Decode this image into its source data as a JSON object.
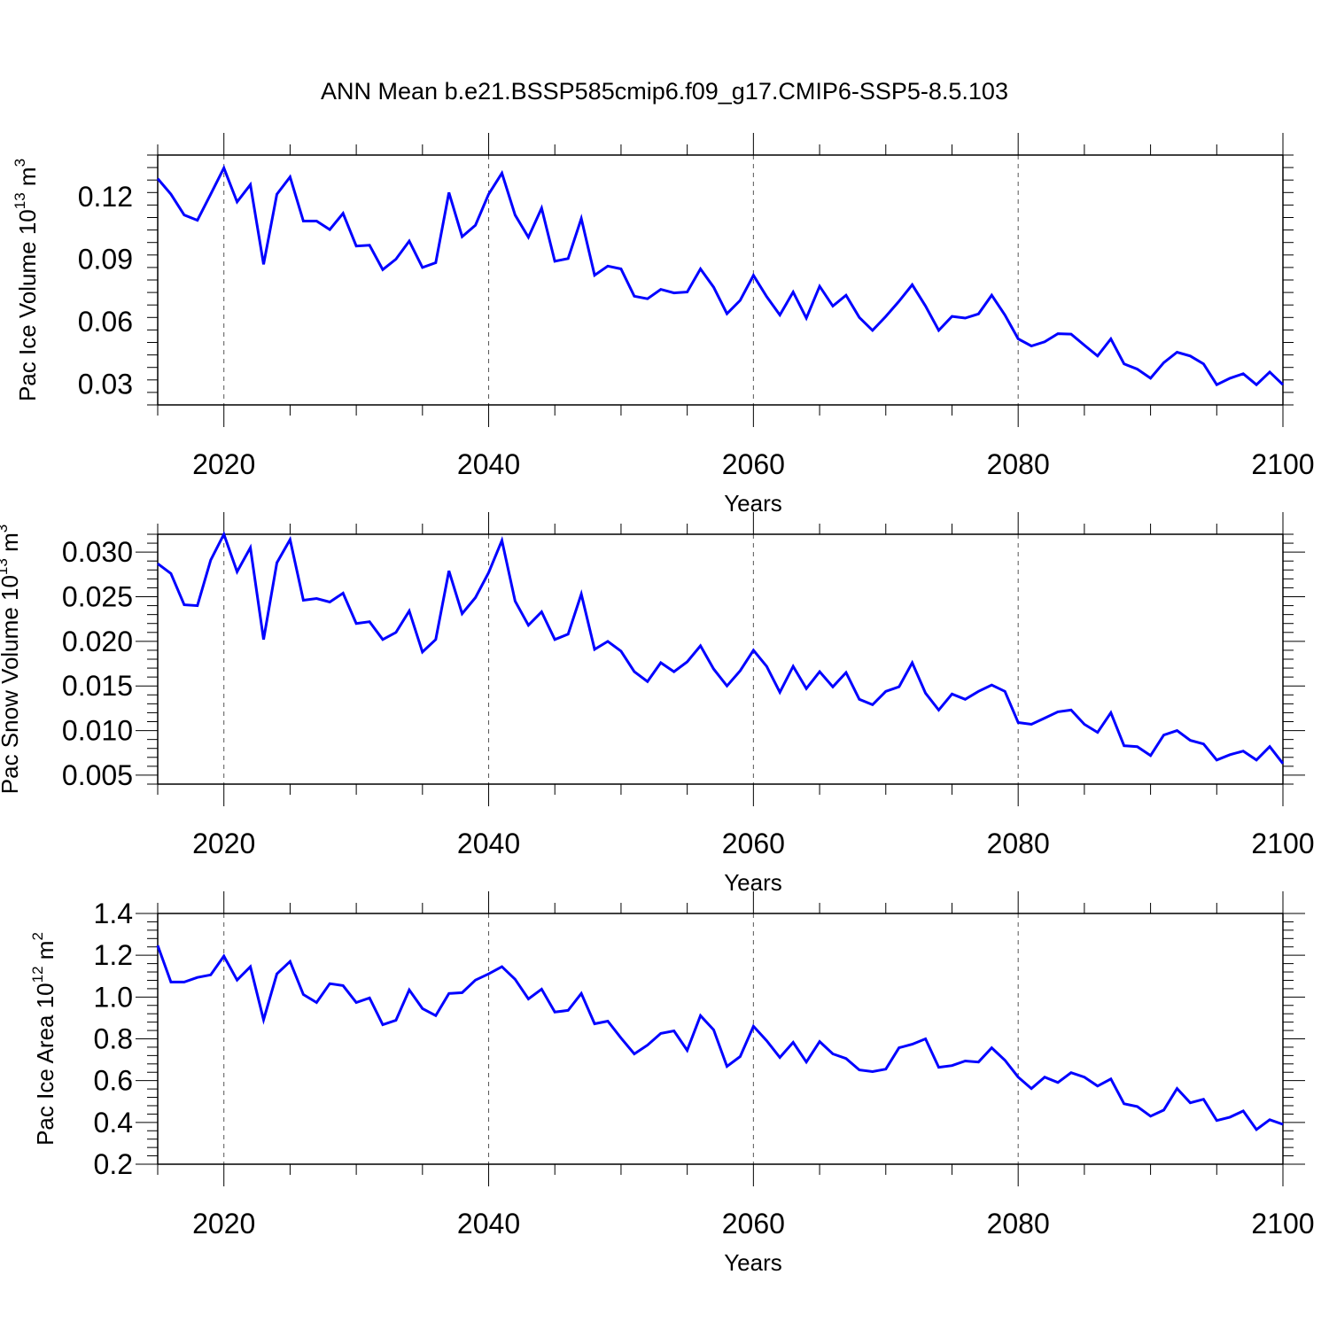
{
  "figure": {
    "title": "ANN Mean b.e21.BSSP585cmip6.f09_g17.CMIP6-SSP5-8.5.103",
    "line_color": "#0000ff"
  },
  "chart_data": [
    {
      "type": "line",
      "xlabel": "Years",
      "ylabel_base": "Pac Ice Volume 10",
      "ylabel_exp": "13",
      "ylabel_unit": " m",
      "ylabel_unit_exp": "3",
      "xlim": [
        2015,
        2100
      ],
      "ylim": [
        0.02,
        0.14
      ],
      "x_ticks": [
        "2020",
        "2040",
        "2060",
        "2080",
        "2100"
      ],
      "y_ticks": [
        "0.03",
        "0.06",
        "0.09",
        "0.12"
      ],
      "x": [
        2015,
        2016,
        2017,
        2018,
        2019,
        2020,
        2021,
        2022,
        2023,
        2024,
        2025,
        2026,
        2027,
        2028,
        2029,
        2030,
        2031,
        2032,
        2033,
        2034,
        2035,
        2036,
        2037,
        2038,
        2039,
        2040,
        2041,
        2042,
        2043,
        2044,
        2045,
        2046,
        2047,
        2048,
        2049,
        2050,
        2051,
        2052,
        2053,
        2054,
        2055,
        2056,
        2057,
        2058,
        2059,
        2060,
        2061,
        2062,
        2063,
        2064,
        2065,
        2066,
        2067,
        2068,
        2069,
        2070,
        2071,
        2072,
        2073,
        2074,
        2075,
        2076,
        2077,
        2078,
        2079,
        2080,
        2081,
        2082,
        2083,
        2084,
        2085,
        2086,
        2087,
        2088,
        2089,
        2090,
        2091,
        2092,
        2093,
        2094,
        2095,
        2096,
        2097,
        2098,
        2099,
        2100
      ],
      "values": [
        0.1287,
        0.1212,
        0.1112,
        0.1087,
        0.1212,
        0.1338,
        0.1175,
        0.1258,
        0.0875,
        0.1212,
        0.1295,
        0.1083,
        0.1083,
        0.1042,
        0.112,
        0.0963,
        0.0967,
        0.085,
        0.09,
        0.0987,
        0.086,
        0.0883,
        0.122,
        0.1008,
        0.1063,
        0.1212,
        0.1313,
        0.1112,
        0.1005,
        0.1145,
        0.089,
        0.0903,
        0.1095,
        0.0823,
        0.0867,
        0.0853,
        0.0722,
        0.071,
        0.0755,
        0.0738,
        0.0742,
        0.0853,
        0.0765,
        0.0638,
        0.0702,
        0.0822,
        0.072,
        0.0632,
        0.0742,
        0.0617,
        0.077,
        0.0675,
        0.0727,
        0.062,
        0.0558,
        0.0625,
        0.0698,
        0.0777,
        0.0675,
        0.0558,
        0.0625,
        0.0617,
        0.0637,
        0.0727,
        0.0632,
        0.0517,
        0.0483,
        0.0503,
        0.0542,
        0.054,
        0.0487,
        0.0435,
        0.0517,
        0.0397,
        0.0372,
        0.0328,
        0.0403,
        0.0453,
        0.0435,
        0.0397,
        0.0297,
        0.0328,
        0.035,
        0.0297,
        0.0358,
        0.0297
      ]
    },
    {
      "type": "line",
      "xlabel": "Years",
      "ylabel_base": "Pac Snow Volume 10",
      "ylabel_exp": "13",
      "ylabel_unit": " m",
      "ylabel_unit_exp": "3",
      "xlim": [
        2015,
        2100
      ],
      "ylim": [
        0.004,
        0.032
      ],
      "x_ticks": [
        "2020",
        "2040",
        "2060",
        "2080",
        "2100"
      ],
      "y_ticks": [
        "0.005",
        "0.010",
        "0.015",
        "0.020",
        "0.025",
        "0.030"
      ],
      "x": [
        2015,
        2016,
        2017,
        2018,
        2019,
        2020,
        2021,
        2022,
        2023,
        2024,
        2025,
        2026,
        2027,
        2028,
        2029,
        2030,
        2031,
        2032,
        2033,
        2034,
        2035,
        2036,
        2037,
        2038,
        2039,
        2040,
        2041,
        2042,
        2043,
        2044,
        2045,
        2046,
        2047,
        2048,
        2049,
        2050,
        2051,
        2052,
        2053,
        2054,
        2055,
        2056,
        2057,
        2058,
        2059,
        2060,
        2061,
        2062,
        2063,
        2064,
        2065,
        2066,
        2067,
        2068,
        2069,
        2070,
        2071,
        2072,
        2073,
        2074,
        2075,
        2076,
        2077,
        2078,
        2079,
        2080,
        2081,
        2082,
        2083,
        2084,
        2085,
        2086,
        2087,
        2088,
        2089,
        2090,
        2091,
        2092,
        2093,
        2094,
        2095,
        2096,
        2097,
        2098,
        2099,
        2100
      ],
      "values": [
        0.0287,
        0.0276,
        0.0241,
        0.024,
        0.0291,
        0.032,
        0.0278,
        0.0305,
        0.0202,
        0.0288,
        0.0314,
        0.0246,
        0.0248,
        0.0244,
        0.0254,
        0.022,
        0.0222,
        0.0202,
        0.021,
        0.0234,
        0.0188,
        0.0202,
        0.0279,
        0.0231,
        0.0249,
        0.0277,
        0.0313,
        0.0245,
        0.0218,
        0.0233,
        0.0202,
        0.0208,
        0.0253,
        0.0191,
        0.02,
        0.0189,
        0.0166,
        0.0155,
        0.0176,
        0.0166,
        0.0177,
        0.0195,
        0.0169,
        0.015,
        0.0167,
        0.019,
        0.0172,
        0.0143,
        0.0172,
        0.0147,
        0.0166,
        0.0149,
        0.0165,
        0.0135,
        0.0129,
        0.0144,
        0.0149,
        0.0176,
        0.0142,
        0.0123,
        0.0141,
        0.0135,
        0.0144,
        0.0151,
        0.0144,
        0.0109,
        0.0107,
        0.0114,
        0.0121,
        0.0123,
        0.0107,
        0.0098,
        0.012,
        0.0083,
        0.0082,
        0.0072,
        0.0095,
        0.01,
        0.0089,
        0.0085,
        0.0067,
        0.0073,
        0.0077,
        0.0067,
        0.0082,
        0.0063
      ]
    },
    {
      "type": "line",
      "xlabel": "Years",
      "ylabel_base": "Pac Ice Area 10",
      "ylabel_exp": "12",
      "ylabel_unit": " m",
      "ylabel_unit_exp": "2",
      "xlim": [
        2015,
        2100
      ],
      "ylim": [
        0.2,
        1.4
      ],
      "x_ticks": [
        "2020",
        "2040",
        "2060",
        "2080",
        "2100"
      ],
      "y_ticks": [
        "0.2",
        "0.4",
        "0.6",
        "0.8",
        "1.0",
        "1.2",
        "1.4"
      ],
      "x": [
        2015,
        2016,
        2017,
        2018,
        2019,
        2020,
        2021,
        2022,
        2023,
        2024,
        2025,
        2026,
        2027,
        2028,
        2029,
        2030,
        2031,
        2032,
        2033,
        2034,
        2035,
        2036,
        2037,
        2038,
        2039,
        2040,
        2041,
        2042,
        2043,
        2044,
        2045,
        2046,
        2047,
        2048,
        2049,
        2050,
        2051,
        2052,
        2053,
        2054,
        2055,
        2056,
        2057,
        2058,
        2059,
        2060,
        2061,
        2062,
        2063,
        2064,
        2065,
        2066,
        2067,
        2068,
        2069,
        2070,
        2071,
        2072,
        2073,
        2074,
        2075,
        2076,
        2077,
        2078,
        2079,
        2080,
        2081,
        2082,
        2083,
        2084,
        2085,
        2086,
        2087,
        2088,
        2089,
        2090,
        2091,
        2092,
        2093,
        2094,
        2095,
        2096,
        2097,
        2098,
        2099,
        2100
      ],
      "values": [
        1.247,
        1.072,
        1.072,
        1.094,
        1.106,
        1.196,
        1.081,
        1.145,
        0.891,
        1.111,
        1.17,
        1.012,
        0.974,
        1.064,
        1.055,
        0.974,
        0.996,
        0.868,
        0.889,
        1.034,
        0.945,
        0.911,
        1.017,
        1.021,
        1.081,
        1.111,
        1.145,
        1.085,
        0.991,
        1.038,
        0.928,
        0.936,
        1.017,
        0.872,
        0.885,
        0.804,
        0.728,
        0.77,
        0.826,
        0.838,
        0.745,
        0.911,
        0.843,
        0.668,
        0.715,
        0.86,
        0.791,
        0.711,
        0.783,
        0.689,
        0.787,
        0.728,
        0.706,
        0.651,
        0.643,
        0.655,
        0.757,
        0.774,
        0.8,
        0.664,
        0.672,
        0.694,
        0.689,
        0.757,
        0.698,
        0.617,
        0.562,
        0.617,
        0.591,
        0.638,
        0.617,
        0.574,
        0.608,
        0.489,
        0.476,
        0.43,
        0.459,
        0.562,
        0.494,
        0.511,
        0.409,
        0.425,
        0.455,
        0.366,
        0.413,
        0.391
      ]
    }
  ]
}
